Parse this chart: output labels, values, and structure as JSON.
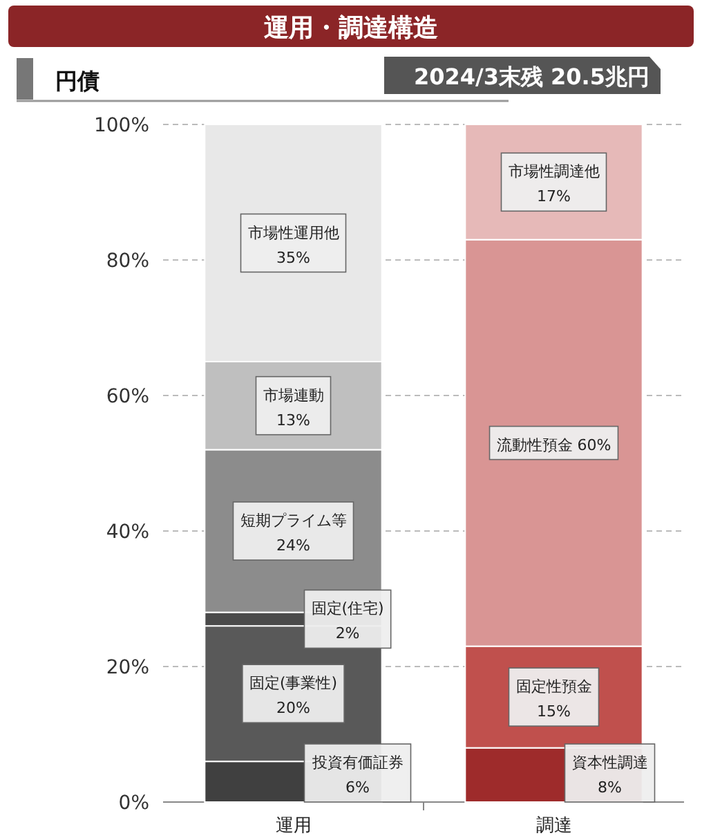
{
  "chart_data": {
    "type": "bar",
    "title": "運用・調達構造",
    "subtitle": "円債",
    "annotations": [
      "2024/3末残 20.5兆円"
    ],
    "categories": [
      "運用",
      "調達"
    ],
    "stacked": true,
    "ylim": [
      0,
      100
    ],
    "yticks": [
      {
        "value": 0,
        "label": "0%"
      },
      {
        "value": 20,
        "label": "20%"
      },
      {
        "value": 40,
        "label": "40%"
      },
      {
        "value": 60,
        "label": "60%"
      },
      {
        "value": 80,
        "label": "80%"
      },
      {
        "value": 100,
        "label": "100%"
      }
    ],
    "grid": "y",
    "series": [
      {
        "name": "投資有価証券",
        "color": "#404040",
        "values": [
          6,
          null
        ],
        "value_labels": [
          "6%",
          null
        ]
      },
      {
        "name": "固定(事業性)",
        "color": "#595959",
        "values": [
          20,
          null
        ],
        "value_labels": [
          "20%",
          null
        ]
      },
      {
        "name": "固定(住宅)",
        "color": "#4a4a4a",
        "values": [
          2,
          null
        ],
        "value_labels": [
          "2%",
          null
        ]
      },
      {
        "name": "短期プライム等",
        "color": "#8c8c8c",
        "values": [
          24,
          null
        ],
        "value_labels": [
          "24%",
          null
        ]
      },
      {
        "name": "市場連動",
        "color": "#bfbfbf",
        "values": [
          13,
          null
        ],
        "value_labels": [
          "13%",
          null
        ]
      },
      {
        "name": "市場性運用他",
        "color": "#e8e8e8",
        "values": [
          35,
          null
        ],
        "value_labels": [
          "35%",
          null
        ]
      },
      {
        "name": "資本性調達",
        "color": "#9e2b2b",
        "values": [
          null,
          8
        ],
        "value_labels": [
          null,
          "8%"
        ]
      },
      {
        "name": "固定性預金",
        "color": "#c0504d",
        "values": [
          null,
          15
        ],
        "value_labels": [
          null,
          "15%"
        ]
      },
      {
        "name": "流動性預金",
        "color": "#d99594",
        "values": [
          null,
          60
        ],
        "value_labels": [
          null,
          "60%"
        ]
      },
      {
        "name": "市場性調達他",
        "color": "#e6b9b8",
        "values": [
          null,
          17
        ],
        "value_labels": [
          null,
          "17%"
        ]
      }
    ]
  }
}
